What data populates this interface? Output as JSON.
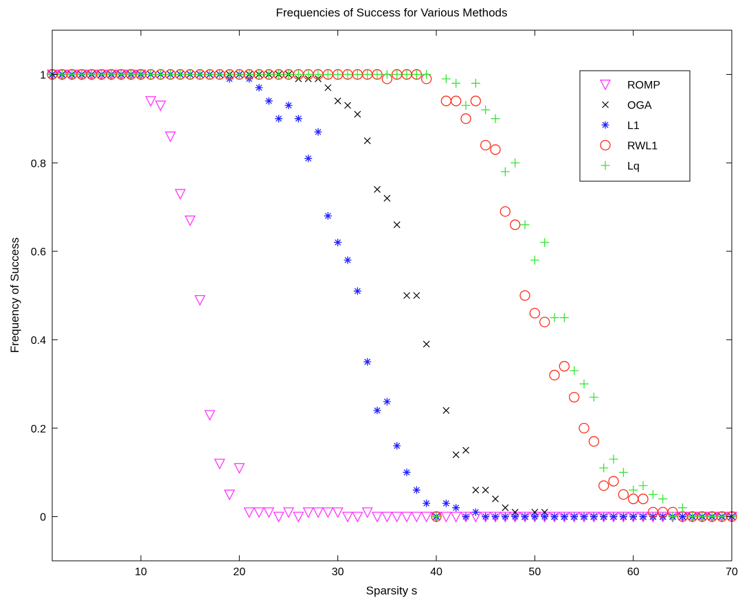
{
  "chart_data": {
    "type": "scatter",
    "title": "Frequencies of Success for Various Methods",
    "xlabel": "Sparsity s",
    "ylabel": "Frequency of Success",
    "xlim": [
      1,
      70
    ],
    "ylim": [
      -0.1,
      1.1
    ],
    "x_ticks": [
      "10",
      "20",
      "30",
      "40",
      "50",
      "60",
      "70"
    ],
    "y_ticks": [
      "0",
      "0.2",
      "0.4",
      "0.6",
      "0.8",
      "1"
    ],
    "grid": false,
    "legend_position": "top-right",
    "x": [
      1,
      2,
      3,
      4,
      5,
      6,
      7,
      8,
      9,
      10,
      11,
      12,
      13,
      14,
      15,
      16,
      17,
      18,
      19,
      20,
      21,
      22,
      23,
      24,
      25,
      26,
      27,
      28,
      29,
      30,
      31,
      32,
      33,
      34,
      35,
      36,
      37,
      38,
      39,
      40,
      41,
      42,
      43,
      44,
      45,
      46,
      47,
      48,
      49,
      50,
      51,
      52,
      53,
      54,
      55,
      56,
      57,
      58,
      59,
      60,
      61,
      62,
      63,
      64,
      65,
      66,
      67,
      68,
      69,
      70
    ],
    "series": [
      {
        "name": "ROMP",
        "marker": "triangle-down",
        "color": "#ff33ff",
        "values": [
          1,
          1,
          1,
          1,
          1,
          1,
          1,
          1,
          1,
          1,
          0.94,
          0.93,
          0.86,
          0.73,
          0.67,
          0.49,
          0.23,
          0.12,
          0.05,
          0.11,
          0.01,
          0.01,
          0.01,
          0,
          0.01,
          0,
          0.01,
          0.01,
          0.01,
          0.01,
          0,
          0,
          0.01,
          0,
          0,
          0,
          0,
          0,
          0,
          0,
          0,
          0,
          0,
          0,
          0,
          0,
          0,
          0,
          0,
          0,
          0,
          0,
          0,
          0,
          0,
          0,
          0,
          0,
          0,
          0,
          0,
          0,
          0,
          0,
          0,
          0,
          0,
          0,
          0,
          0
        ]
      },
      {
        "name": "OGA",
        "marker": "x",
        "color": "#000000",
        "values": [
          1,
          1,
          1,
          1,
          1,
          1,
          1,
          1,
          1,
          1,
          1,
          1,
          1,
          1,
          1,
          1,
          1,
          1,
          1,
          1,
          1,
          1,
          1,
          1,
          1,
          0.99,
          0.99,
          0.99,
          0.97,
          0.94,
          0.93,
          0.91,
          0.85,
          0.74,
          0.72,
          0.66,
          0.5,
          0.5,
          0.39,
          0,
          0.24,
          0.14,
          0.15,
          0.06,
          0.06,
          0.04,
          0.02,
          0.01,
          0,
          0.01,
          0.01,
          0,
          0,
          0,
          0,
          0,
          0,
          0,
          0,
          0,
          0,
          0,
          0,
          0,
          0,
          0,
          0,
          0,
          0,
          0
        ]
      },
      {
        "name": "L1",
        "marker": "asterisk",
        "color": "#1f1fff",
        "values": [
          1,
          1,
          1,
          1,
          1,
          1,
          1,
          1,
          1,
          1,
          1,
          1,
          1,
          1,
          1,
          1,
          1,
          1,
          0.99,
          1,
          0.99,
          0.97,
          0.94,
          0.9,
          0.93,
          0.9,
          0.81,
          0.87,
          0.68,
          0.62,
          0.58,
          0.51,
          0.35,
          0.24,
          0.26,
          0.16,
          0.1,
          0.06,
          0.03,
          0,
          0.03,
          0.02,
          0,
          0.01,
          0,
          0,
          0,
          0,
          0,
          0,
          0,
          0,
          0,
          0,
          0,
          0,
          0,
          0,
          0,
          0,
          0,
          0,
          0,
          0,
          0,
          0,
          0,
          0,
          0,
          0
        ]
      },
      {
        "name": "RWL1",
        "marker": "circle",
        "color": "#ff2a1a",
        "values": [
          1,
          1,
          1,
          1,
          1,
          1,
          1,
          1,
          1,
          1,
          1,
          1,
          1,
          1,
          1,
          1,
          1,
          1,
          1,
          1,
          1,
          1,
          1,
          1,
          1,
          1,
          1,
          1,
          1,
          1,
          1,
          1,
          1,
          1,
          0.99,
          1,
          1,
          1,
          0.99,
          0,
          0.94,
          0.94,
          0.9,
          0.94,
          0.84,
          0.83,
          0.69,
          0.66,
          0.5,
          0.46,
          0.44,
          0.32,
          0.34,
          0.27,
          0.2,
          0.17,
          0.07,
          0.08,
          0.05,
          0.04,
          0.04,
          0.01,
          0.01,
          0.01,
          0,
          0,
          0,
          0,
          0,
          0
        ]
      },
      {
        "name": "Lq",
        "marker": "plus",
        "color": "#33e633",
        "values": [
          1,
          1,
          1,
          1,
          1,
          1,
          1,
          1,
          1,
          1,
          1,
          1,
          1,
          1,
          1,
          1,
          1,
          1,
          1,
          1,
          1,
          1,
          1,
          1,
          1,
          1,
          1,
          1,
          1,
          1,
          1,
          1,
          1,
          1,
          1,
          1,
          1,
          1,
          1,
          0,
          0.99,
          0.98,
          0.93,
          0.98,
          0.92,
          0.9,
          0.78,
          0.8,
          0.66,
          0.58,
          0.62,
          0.45,
          0.45,
          0.33,
          0.3,
          0.27,
          0.11,
          0.13,
          0.1,
          0.06,
          0.07,
          0.05,
          0.04,
          0,
          0.02,
          0,
          0,
          0,
          0,
          0
        ]
      }
    ]
  }
}
